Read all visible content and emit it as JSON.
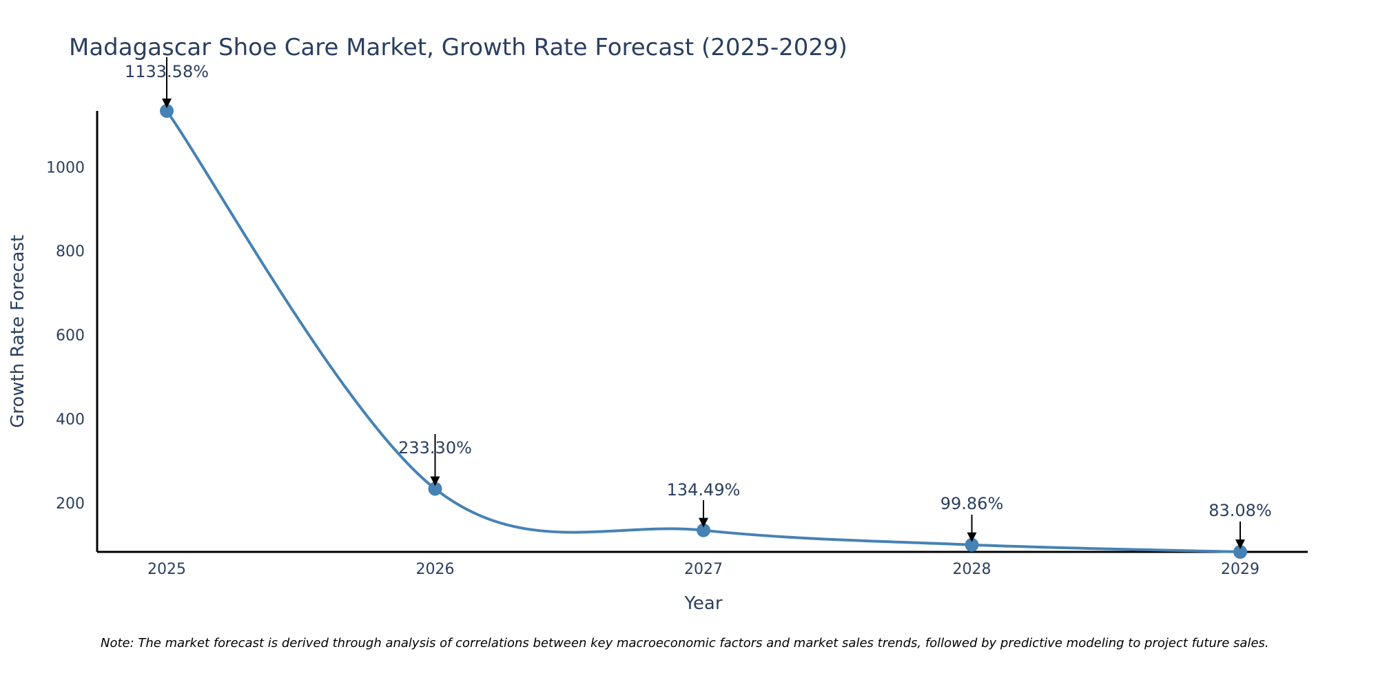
{
  "chart_data": {
    "type": "line",
    "title": "Madagascar Shoe Care Market, Growth Rate Forecast (2025-2029)",
    "xlabel": "Year",
    "ylabel": "Growth Rate Forecast",
    "categories": [
      "2025",
      "2026",
      "2027",
      "2028",
      "2029"
    ],
    "series": [
      {
        "name": "Growth Rate Forecast",
        "values": [
          1133.58,
          233.3,
          134.49,
          99.86,
          83.08
        ],
        "labels": [
          "1133.58%",
          "233.30%",
          "134.49%",
          "99.86%",
          "83.08%"
        ],
        "color": "#4682b4"
      }
    ],
    "yticks": [
      200,
      400,
      600,
      800,
      1000
    ],
    "ylim": [
      83.08,
      1133.58
    ],
    "grid": false,
    "note": "Note: The market forecast is derived through analysis of correlations between key macroeconomic factors and market sales trends, followed by predictive modeling to project future sales."
  }
}
